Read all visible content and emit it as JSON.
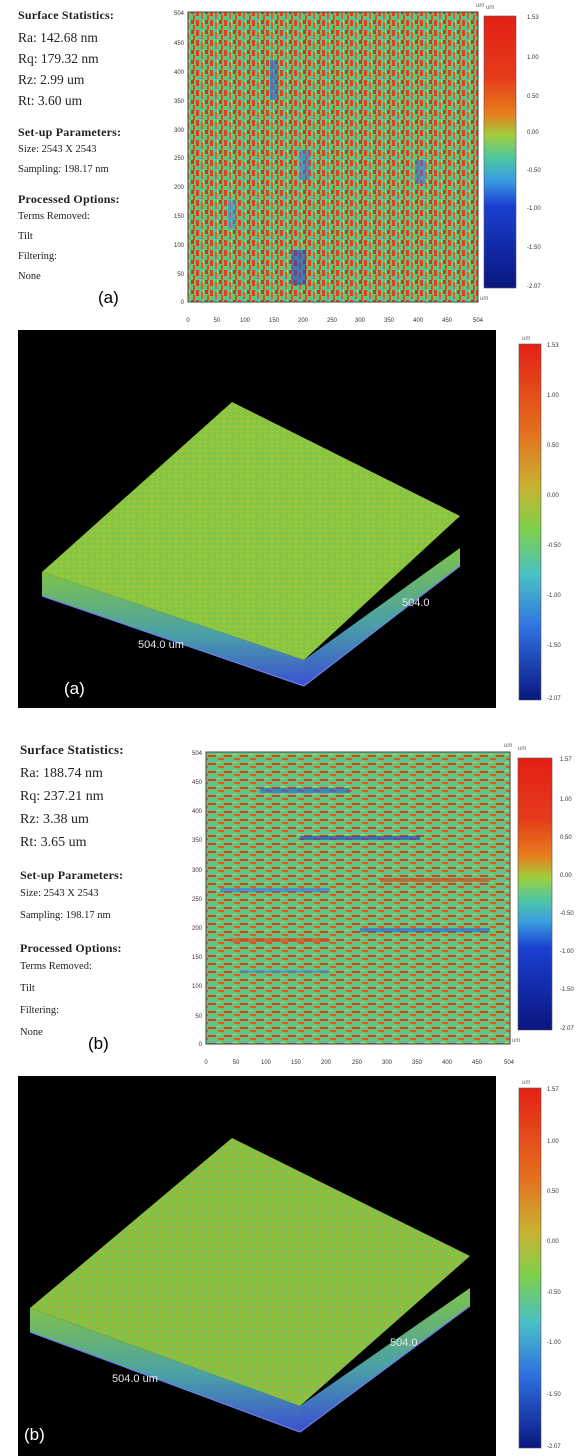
{
  "colors": {
    "scale_top": "#e32015",
    "scale_orange": "#e87d1c",
    "scale_green": "#62cc54",
    "scale_cyan": "#4fc7e0",
    "scale_blue": "#1a3fd0",
    "scale_navy": "#0a1680",
    "surface_green": "#8cc63e",
    "base_blue": "#5b6fd8"
  },
  "panel_a2d": {
    "header_stats": "Surface Statistics:",
    "ra": "Ra:  142.68 nm",
    "rq": "Rq:  179.32 nm",
    "rz": "Rz:  2.99 um",
    "rt": "Rt:  3.60 um",
    "header_setup": "Set-up Parameters:",
    "size": "Size: 2543 X 2543",
    "sampling": "Sampling:  198.17 nm",
    "header_processed": "Processed Options:",
    "terms": "Terms Removed:",
    "tilt": "Tilt",
    "filtering": "Filtering:",
    "none": "None",
    "label": "(a)",
    "unit_y": "um",
    "unit_x": "um",
    "y_ticks": [
      "0",
      "50",
      "100",
      "150",
      "200",
      "250",
      "300",
      "350",
      "400",
      "450",
      "504"
    ],
    "x_ticks": [
      "0",
      "50",
      "100",
      "150",
      "200",
      "250",
      "300",
      "350",
      "400",
      "450",
      "504"
    ],
    "scale_unit": "um",
    "scale_ticks": [
      "1.53",
      "1.00",
      "0.50",
      "0.00",
      "-0.50",
      "-1.00",
      "-1.50",
      "-2.07"
    ]
  },
  "panel_a3d": {
    "label": "(a)",
    "dim_front": "504.0 um",
    "dim_side": "504.0",
    "scale_unit": "um",
    "scale_ticks": [
      "1.53",
      "1.00",
      "0.50",
      "0.00",
      "-0.50",
      "-1.00",
      "-1.50",
      "-2.07"
    ]
  },
  "panel_b2d": {
    "header_stats": "Surface Statistics:",
    "ra": "Ra:  188.74 nm",
    "rq": "Rq:  237.21 nm",
    "rz": "Rz:  3.38 um",
    "rt": "Rt:  3.65 um",
    "header_setup": "Set-up Parameters:",
    "size": "Size: 2543 X 2543",
    "sampling": "Sampling:  198.17 nm",
    "header_processed": "Processed Options:",
    "terms": "Terms Removed:",
    "tilt": "Tilt",
    "filtering": "Filtering:",
    "none": "None",
    "label": "(b)",
    "unit_y": "um",
    "unit_x": "um",
    "y_ticks": [
      "0",
      "50",
      "100",
      "150",
      "200",
      "250",
      "300",
      "350",
      "400",
      "450",
      "504"
    ],
    "x_ticks": [
      "0",
      "50",
      "100",
      "150",
      "200",
      "250",
      "300",
      "350",
      "400",
      "450",
      "504"
    ],
    "scale_unit": "um",
    "scale_ticks": [
      "1.57",
      "1.00",
      "0.50",
      "0.00",
      "-0.50",
      "-1.00",
      "-1.50",
      "-2.07"
    ]
  },
  "panel_b3d": {
    "label": "(b)",
    "dim_front": "504.0 um",
    "dim_side": "504.0",
    "scale_unit": "um",
    "scale_ticks": [
      "1.57",
      "1.00",
      "0.50",
      "0.00",
      "-0.50",
      "-1.00",
      "-1.50",
      "-2.07"
    ]
  }
}
